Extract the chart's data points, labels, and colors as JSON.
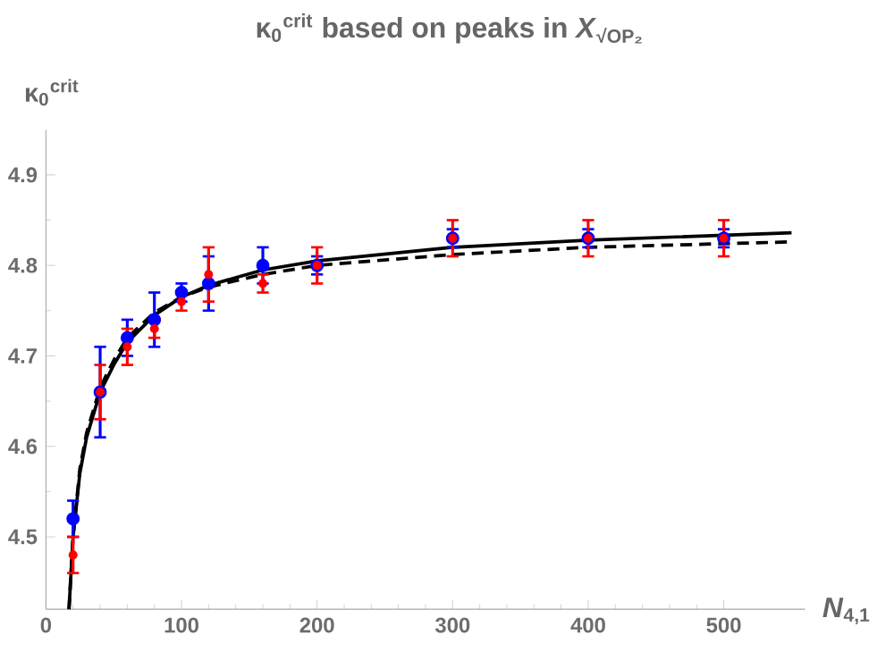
{
  "chart_data": {
    "type": "scatter",
    "title": "κ$_{0}$$^{crit}$ based on peaks in *X*$_{√OP₂}$",
    "xlabel": "*N*$_{4,1}$",
    "ylabel": "κ$_{0}$$^{crit}$",
    "xlim": [
      0,
      560
    ],
    "ylim": [
      4.42,
      4.95
    ],
    "xticks": [
      0,
      100,
      200,
      300,
      400,
      500
    ],
    "yticks": [
      4.5,
      4.6,
      4.7,
      4.8,
      4.9
    ],
    "series": [
      {
        "type": "line",
        "color": "#000000",
        "line_style": "solid",
        "marker": "none",
        "x": [
          17,
          20,
          25,
          30,
          40,
          50,
          60,
          80,
          100,
          120,
          160,
          200,
          300,
          400,
          550
        ],
        "values": [
          4.42,
          4.5,
          4.57,
          4.61,
          4.66,
          4.69,
          4.715,
          4.745,
          4.765,
          4.778,
          4.795,
          4.805,
          4.82,
          4.828,
          4.836
        ]
      },
      {
        "type": "line",
        "color": "#000000",
        "line_style": "dashed",
        "marker": "none",
        "x": [
          17,
          20,
          25,
          30,
          40,
          50,
          60,
          80,
          100,
          120,
          160,
          200,
          300,
          400,
          550
        ],
        "values": [
          4.42,
          4.5,
          4.575,
          4.615,
          4.665,
          4.695,
          4.72,
          4.748,
          4.765,
          4.776,
          4.79,
          4.8,
          4.812,
          4.82,
          4.826
        ]
      },
      {
        "color": "#0000ff",
        "marker": "circle",
        "x": [
          20,
          40,
          60,
          80,
          100,
          120,
          160,
          200,
          300,
          400,
          500
        ],
        "values": [
          4.52,
          4.66,
          4.72,
          4.74,
          4.77,
          4.78,
          4.8,
          4.8,
          4.83,
          4.83,
          4.83
        ],
        "errors": [
          0.02,
          0.05,
          0.02,
          0.03,
          0.01,
          0.03,
          0.02,
          0.01,
          0.01,
          0.01,
          0.01
        ]
      },
      {
        "color": "#ff0000",
        "marker": "circle",
        "x": [
          20,
          40,
          60,
          80,
          100,
          120,
          160,
          200,
          300,
          400,
          500
        ],
        "values": [
          4.48,
          4.66,
          4.71,
          4.73,
          4.76,
          4.79,
          4.78,
          4.8,
          4.83,
          4.83,
          4.83
        ],
        "errors": [
          0.02,
          0.03,
          0.02,
          0.01,
          0.01,
          0.03,
          0.01,
          0.02,
          0.02,
          0.02,
          0.02
        ]
      }
    ]
  }
}
